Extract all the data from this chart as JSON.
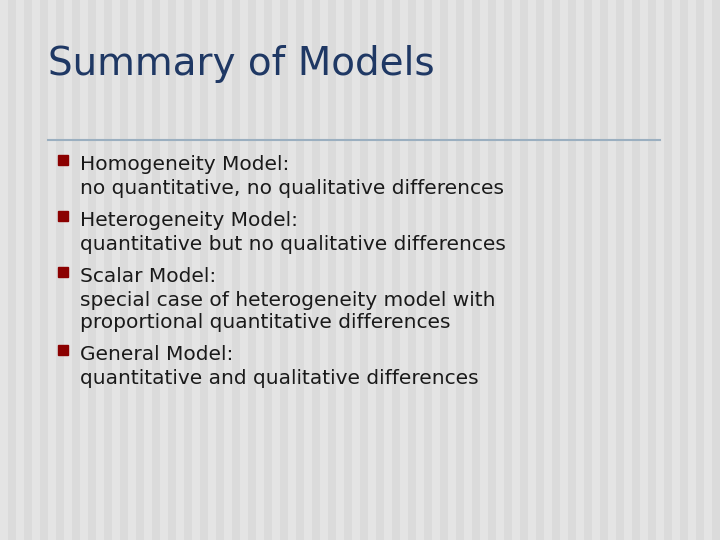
{
  "title": "Summary of Models",
  "title_color": "#1F3864",
  "title_fontsize": 28,
  "background_color": "#E0E0E0",
  "stripe_color1": "#E8E8E8",
  "stripe_color2": "#D8D8D8",
  "divider_color": "#9BAFC0",
  "bullet_color": "#8B0000",
  "text_color": "#1a1a1a",
  "text_fontsize": 14.5,
  "items": [
    {
      "header": "Homogeneity Model:",
      "detail": "no quantitative, no qualitative differences"
    },
    {
      "header": "Heterogeneity Model:",
      "detail": "quantitative but no qualitative differences"
    },
    {
      "header": "Scalar Model:",
      "detail": "special case of heterogeneity model with\nproportional quantitative differences"
    },
    {
      "header": "General Model:",
      "detail": "quantitative and qualitative differences"
    }
  ]
}
